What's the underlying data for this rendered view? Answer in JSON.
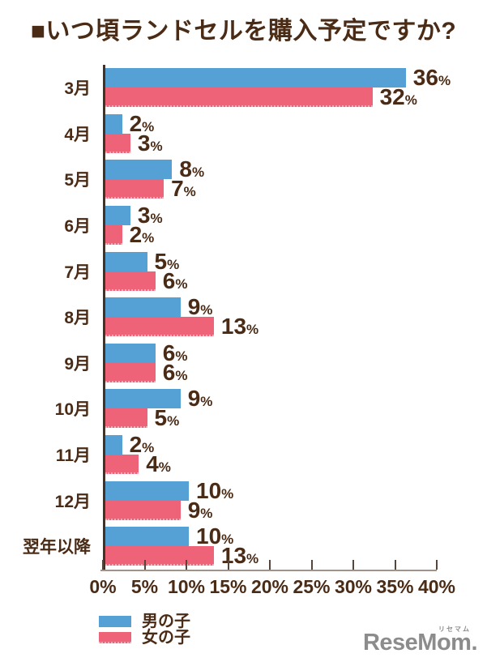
{
  "title": "■いつ頃ランドセルを購入予定ですか?",
  "chart_data": {
    "type": "bar",
    "orientation": "horizontal",
    "title": "■いつ頃ランドセルを購入予定ですか?",
    "categories": [
      "3月",
      "4月",
      "5月",
      "6月",
      "7月",
      "8月",
      "9月",
      "10月",
      "11月",
      "12月",
      "翌年以降"
    ],
    "series": [
      {
        "key": "boys",
        "name": "男の子",
        "color": "#55a1d6",
        "values": [
          36,
          2,
          8,
          3,
          5,
          9,
          6,
          9,
          2,
          10,
          10
        ]
      },
      {
        "key": "girls",
        "name": "女の子",
        "color": "#ee6378",
        "values": [
          32,
          3,
          7,
          2,
          6,
          13,
          6,
          5,
          4,
          9,
          13
        ]
      }
    ],
    "xlim": [
      0,
      40
    ],
    "x_tick_labels": [
      "0%",
      "5%",
      "10%",
      "15%",
      "20%",
      "25%",
      "30%",
      "35%",
      "40%"
    ],
    "value_suffix": "%",
    "grid": false,
    "legend_position": "bottom-left",
    "bar_value_labels": true
  },
  "logo": {
    "text": "ReseMom.",
    "ruby": "リセマム"
  },
  "colors": {
    "boys_blue": "#55a1d6",
    "girls_pink": "#ee6378",
    "text_brown": "#4a2b16",
    "axis_dark": "#443325",
    "axis_light": "#a2938a",
    "logo_gray": "#8c8c8c",
    "background": "#ffffff"
  }
}
